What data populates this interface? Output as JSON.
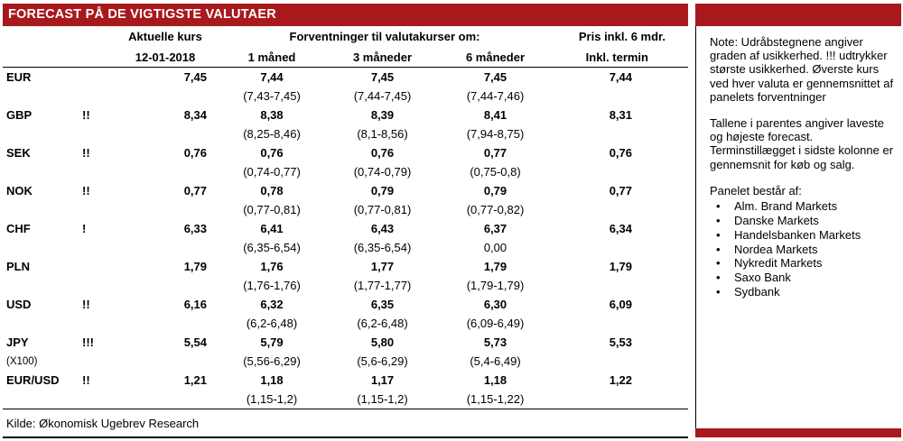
{
  "title": "FORECAST PÅ DE VIGTIGSTE VALUTAER",
  "colors": {
    "accent_red": "#a8191e",
    "border_black": "#000000"
  },
  "table": {
    "header": {
      "current_group": "Aktuelle kurs",
      "forecast_group": "Forventninger til valutakurser om:",
      "price_group": "Pris inkl. 6 mdr.",
      "current_sub": "12-01-2018",
      "m1_sub": "1 måned",
      "m3_sub": "3 måneder",
      "m6_sub": "6 måneder",
      "price_sub": "Inkl. termin"
    },
    "rows": [
      {
        "code": "EUR",
        "marks": "",
        "code_note": "",
        "current": "7,45",
        "m1": "7,44",
        "m3": "7,45",
        "m6": "7,45",
        "termin": "7,44",
        "r1": "(7,43-7,45)",
        "r3": "(7,44-7,45)",
        "r6": "(7,44-7,46)"
      },
      {
        "code": "GBP",
        "marks": "!!",
        "code_note": "",
        "current": "8,34",
        "m1": "8,38",
        "m3": "8,39",
        "m6": "8,41",
        "termin": "8,31",
        "r1": "(8,25-8,46)",
        "r3": "(8,1-8,56)",
        "r6": "(7,94-8,75)"
      },
      {
        "code": "SEK",
        "marks": "!!",
        "code_note": "",
        "current": "0,76",
        "m1": "0,76",
        "m3": "0,76",
        "m6": "0,77",
        "termin": "0,76",
        "r1": "(0,74-0,77)",
        "r3": "(0,74-0,79)",
        "r6": "(0,75-0,8)"
      },
      {
        "code": "NOK",
        "marks": "!!",
        "code_note": "",
        "current": "0,77",
        "m1": "0,78",
        "m3": "0,79",
        "m6": "0,79",
        "termin": "0,77",
        "r1": "(0,77-0,81)",
        "r3": "(0,77-0,81)",
        "r6": "(0,77-0,82)"
      },
      {
        "code": "CHF",
        "marks": "!",
        "code_note": "",
        "current": "6,33",
        "m1": "6,41",
        "m3": "6,43",
        "m6": "6,37",
        "termin": "6,34",
        "r1": "(6,35-6,54)",
        "r3": "(6,35-6,54)",
        "r6": "0,00"
      },
      {
        "code": "PLN",
        "marks": "",
        "code_note": "",
        "current": "1,79",
        "m1": "1,76",
        "m3": "1,77",
        "m6": "1,79",
        "termin": "1,79",
        "r1": "(1,76-1,76)",
        "r3": "(1,77-1,77)",
        "r6": "(1,79-1,79)"
      },
      {
        "code": "USD",
        "marks": "!!",
        "code_note": "",
        "current": "6,16",
        "m1": "6,32",
        "m3": "6,35",
        "m6": "6,30",
        "termin": "6,09",
        "r1": "(6,2-6,48)",
        "r3": "(6,2-6,48)",
        "r6": "(6,09-6,49)"
      },
      {
        "code": "JPY",
        "marks": "!!!",
        "code_note": "(X100)",
        "current": "5,54",
        "m1": "5,79",
        "m3": "5,80",
        "m6": "5,73",
        "termin": "5,53",
        "r1": "(5,56-6,29)",
        "r3": "(5,6-6,29)",
        "r6": "(5,4-6,49)"
      },
      {
        "code": "EUR/USD",
        "marks": "!!",
        "code_note": "",
        "current": "1,21",
        "m1": "1,18",
        "m3": "1,17",
        "m6": "1,18",
        "termin": "1,22",
        "r1": "(1,15-1,2)",
        "r3": "(1,15-1,2)",
        "r6": "(1,15-1,22)"
      }
    ],
    "source": "Kilde: Økonomisk Ugebrev Research"
  },
  "note_panel": {
    "note_1": "Note: Udråbstegnene angiver graden af usikkerhed. !!! udtrykker største usikkerhed. Øverste kurs ved hver valuta er gennemsnittet af panelets forventninger",
    "note_2": "Tallene i parentes angiver laveste og højeste forecast. Terminstillægget i sidste kolonne er gennemsnit for køb og salg.",
    "panel_title": "Panelet består af:",
    "members": [
      "Alm. Brand Markets",
      "Danske Markets",
      "Handelsbanken Markets",
      "Nordea Markets",
      "Nykredit Markets",
      "Saxo Bank",
      "Sydbank"
    ]
  }
}
